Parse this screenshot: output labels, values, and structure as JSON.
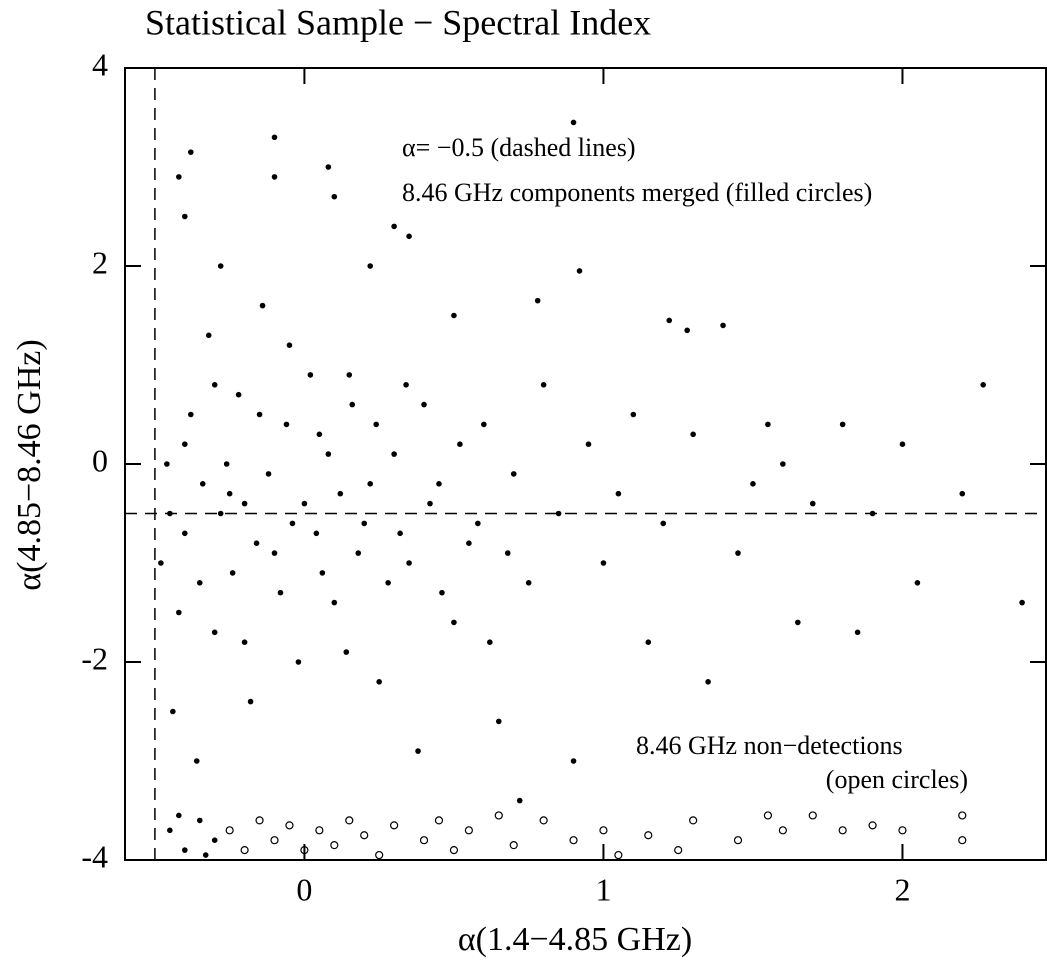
{
  "chart_data": {
    "type": "scatter",
    "title": "Statistical Sample − Spectral Index",
    "x_label": "α(1.4−4.85 GHz)",
    "y_label": "α(4.85−8.46 GHz)",
    "annotations": [
      "α= −0.5 (dashed lines)",
      "8.46 GHz components merged (filled circles)",
      "8.46 GHz non−detections",
      "(open circles)"
    ],
    "xlim": [
      -0.6,
      2.48
    ],
    "ylim": [
      -4,
      4
    ],
    "xticks": [
      0,
      1,
      2
    ],
    "yticks": [
      -4,
      -2,
      0,
      2,
      4
    ],
    "vline": -0.5,
    "hline": -0.5,
    "series": [
      {
        "color": "#000000",
        "marker": "filled",
        "x": [
          -0.45,
          -0.4,
          -0.35,
          -0.3,
          -0.25,
          -0.2,
          -0.15,
          -0.1,
          -0.05,
          0,
          0.05,
          0.1,
          0.15,
          0.2,
          0.25,
          0.3,
          0.35,
          0.4,
          0.45,
          0.5,
          0.55,
          0.6,
          0.65,
          0.7,
          0.75,
          0.8,
          0.85,
          0.9,
          0.95,
          1.0,
          1.05,
          1.1,
          1.15,
          1.2,
          1.3,
          1.35,
          1.4,
          1.45,
          1.5,
          1.55,
          1.6,
          1.65,
          1.7,
          1.8,
          1.85,
          1.9,
          2.0,
          2.05,
          2.2,
          2.27,
          2.4,
          -0.38,
          -0.28,
          -0.1,
          -0.1,
          0.08,
          0.1,
          0.3,
          0.35,
          0.5,
          0.78,
          0.9,
          0.92,
          1.22,
          1.28,
          -0.42,
          -0.4,
          0.22,
          -0.48,
          -0.46,
          -0.44,
          -0.42,
          -0.4,
          -0.38,
          -0.36,
          -0.34,
          -0.32,
          -0.3,
          -0.28,
          -0.26,
          -0.24,
          -0.22,
          -0.2,
          -0.18,
          -0.16,
          -0.14,
          -0.12,
          -0.08,
          -0.06,
          -0.04,
          -0.02,
          0.02,
          0.04,
          0.06,
          0.08,
          0.12,
          0.14,
          0.16,
          0.18,
          0.22,
          0.24,
          0.28,
          0.32,
          0.34,
          0.38,
          0.42,
          0.46,
          0.52,
          0.58,
          0.62,
          0.68,
          0.72,
          -0.45,
          -0.4,
          -0.35,
          -0.3,
          -0.42,
          -0.33
        ],
        "y": [
          -0.5,
          0.2,
          -1.2,
          0.8,
          -0.3,
          -1.8,
          0.5,
          -0.9,
          1.2,
          -0.4,
          0.3,
          -1.4,
          0.9,
          -0.6,
          -2.2,
          0.1,
          -1.0,
          0.6,
          -0.2,
          -1.6,
          -0.8,
          0.4,
          -2.6,
          -0.1,
          -1.2,
          0.8,
          -0.5,
          -3.0,
          0.2,
          -1.0,
          -0.3,
          0.5,
          -1.8,
          -0.6,
          0.3,
          -2.2,
          1.4,
          -0.9,
          -0.2,
          0.4,
          0.0,
          -1.6,
          -0.4,
          0.4,
          -1.7,
          -0.5,
          0.2,
          -1.2,
          -0.3,
          0.8,
          -1.4,
          3.15,
          2.0,
          3.3,
          2.9,
          3.0,
          2.7,
          2.4,
          2.3,
          1.5,
          1.65,
          3.45,
          1.95,
          1.45,
          1.35,
          2.9,
          2.5,
          2.0,
          -1.0,
          0.0,
          -2.5,
          -1.5,
          -0.7,
          0.5,
          -3.0,
          -0.2,
          1.3,
          -1.7,
          -0.5,
          0.0,
          -1.1,
          0.7,
          -0.4,
          -2.4,
          -0.8,
          1.6,
          -0.1,
          -1.3,
          0.4,
          -0.6,
          -2.0,
          0.9,
          -0.7,
          -1.1,
          0.1,
          -0.3,
          -1.9,
          0.6,
          -0.9,
          -0.2,
          0.4,
          -1.2,
          -0.7,
          0.8,
          -2.9,
          -0.4,
          -1.3,
          0.2,
          -0.6,
          -1.8,
          -0.9,
          -3.4,
          -3.7,
          -3.9,
          -3.6,
          -3.8,
          -3.55,
          -3.95
        ]
      },
      {
        "color": "#000000",
        "marker": "open",
        "x": [
          -0.25,
          -0.2,
          -0.15,
          -0.1,
          -0.05,
          0,
          0.05,
          0.1,
          0.15,
          0.2,
          0.25,
          0.3,
          0.4,
          0.45,
          0.5,
          0.55,
          0.65,
          0.7,
          0.8,
          0.9,
          1.0,
          1.05,
          1.15,
          1.25,
          1.3,
          1.45,
          1.55,
          1.6,
          1.7,
          1.8,
          1.9,
          2.0,
          2.2,
          2.2
        ],
        "y": [
          -3.7,
          -3.9,
          -3.6,
          -3.8,
          -3.65,
          -3.9,
          -3.7,
          -3.85,
          -3.6,
          -3.75,
          -3.95,
          -3.65,
          -3.8,
          -3.6,
          -3.9,
          -3.7,
          -3.55,
          -3.85,
          -3.6,
          -3.8,
          -3.7,
          -3.95,
          -3.75,
          -3.9,
          -3.6,
          -3.8,
          -3.55,
          -3.7,
          -3.55,
          -3.7,
          -3.65,
          -3.7,
          -3.55,
          -3.8
        ]
      }
    ]
  }
}
